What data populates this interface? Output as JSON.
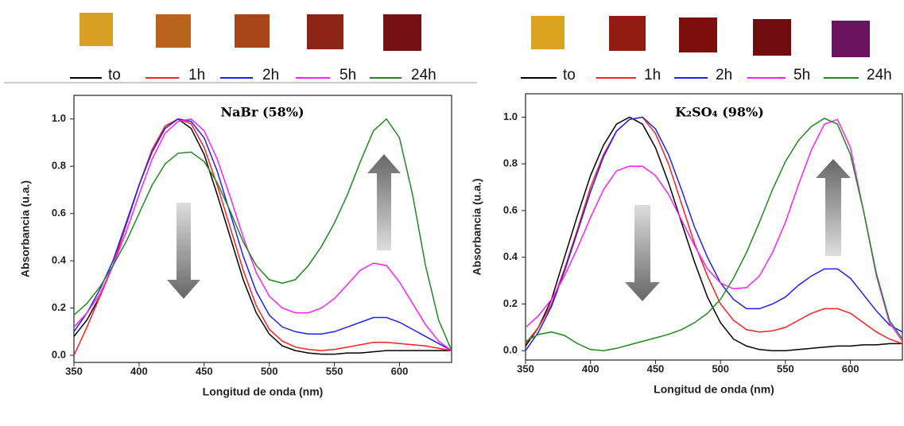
{
  "chart_data": [
    {
      "type": "line",
      "title": "NaBr (58%)",
      "x_label": "Longitud de onda (nm)",
      "y_label": "Absorbancia (u.a.)",
      "x": [
        350,
        360,
        370,
        380,
        390,
        400,
        410,
        420,
        430,
        440,
        450,
        460,
        470,
        480,
        490,
        500,
        510,
        520,
        530,
        540,
        550,
        560,
        570,
        580,
        590,
        600,
        610,
        620,
        630,
        640
      ],
      "xlim": [
        350,
        640
      ],
      "ylim": [
        -0.03,
        1.1
      ],
      "xticks": [
        350,
        400,
        450,
        500,
        550,
        600
      ],
      "yticks": [
        {
          "value": 0,
          "label": "0.0"
        },
        0.2,
        0.4,
        0.6,
        0.8,
        {
          "value": 1,
          "label": "1.0"
        }
      ],
      "series": [
        {
          "name": "to",
          "color": "#000000",
          "values": [
            0.08,
            0.15,
            0.25,
            0.38,
            0.55,
            0.72,
            0.87,
            0.97,
            1.0,
            0.96,
            0.85,
            0.68,
            0.5,
            0.32,
            0.18,
            0.09,
            0.04,
            0.02,
            0.01,
            0.005,
            0.005,
            0.01,
            0.01,
            0.015,
            0.02,
            0.02,
            0.02,
            0.02,
            0.02,
            0.02
          ]
        },
        {
          "name": "1h",
          "color": "#ff2020",
          "values": [
            0.0,
            0.12,
            0.25,
            0.38,
            0.55,
            0.72,
            0.87,
            0.97,
            1.0,
            0.98,
            0.88,
            0.72,
            0.54,
            0.36,
            0.21,
            0.11,
            0.06,
            0.035,
            0.025,
            0.02,
            0.025,
            0.035,
            0.045,
            0.055,
            0.055,
            0.05,
            0.045,
            0.04,
            0.03,
            0.02
          ]
        },
        {
          "name": "2h",
          "color": "#2020ff",
          "values": [
            0.1,
            0.18,
            0.28,
            0.4,
            0.56,
            0.72,
            0.86,
            0.96,
            1.0,
            0.99,
            0.92,
            0.78,
            0.6,
            0.42,
            0.27,
            0.17,
            0.12,
            0.1,
            0.09,
            0.09,
            0.1,
            0.12,
            0.14,
            0.16,
            0.16,
            0.14,
            0.11,
            0.08,
            0.05,
            0.02
          ]
        },
        {
          "name": "5h",
          "color": "#ff20ff",
          "values": [
            0.12,
            0.18,
            0.26,
            0.38,
            0.52,
            0.68,
            0.83,
            0.94,
            0.99,
            1.0,
            0.95,
            0.83,
            0.67,
            0.5,
            0.35,
            0.25,
            0.2,
            0.18,
            0.18,
            0.2,
            0.24,
            0.3,
            0.36,
            0.39,
            0.38,
            0.31,
            0.22,
            0.13,
            0.06,
            0.02
          ]
        },
        {
          "name": "24h",
          "color": "#208a20",
          "values": [
            0.17,
            0.22,
            0.29,
            0.38,
            0.48,
            0.6,
            0.72,
            0.81,
            0.855,
            0.86,
            0.82,
            0.73,
            0.61,
            0.48,
            0.38,
            0.32,
            0.305,
            0.32,
            0.38,
            0.46,
            0.56,
            0.68,
            0.82,
            0.95,
            1.0,
            0.92,
            0.68,
            0.38,
            0.15,
            0.02
          ]
        }
      ]
    },
    {
      "type": "line",
      "title": "K₂SO₄ (98%)",
      "x_label": "Longitud de onda (nm)",
      "y_label": "Absorbancia (u.a.)",
      "x": [
        350,
        360,
        370,
        380,
        390,
        400,
        410,
        420,
        430,
        440,
        450,
        460,
        470,
        480,
        490,
        500,
        510,
        520,
        530,
        540,
        550,
        560,
        570,
        580,
        590,
        600,
        610,
        620,
        630,
        640
      ],
      "xlim": [
        350,
        640
      ],
      "ylim": [
        -0.04,
        1.1
      ],
      "xticks": [
        350,
        400,
        450,
        500,
        550,
        600
      ],
      "yticks": [
        {
          "value": 0,
          "label": "0.0"
        },
        0.2,
        0.4,
        0.6,
        0.8,
        {
          "value": 1,
          "label": "1.0"
        }
      ],
      "series": [
        {
          "name": "to",
          "color": "#000000",
          "values": [
            0.02,
            0.1,
            0.22,
            0.4,
            0.58,
            0.75,
            0.88,
            0.97,
            1.0,
            0.97,
            0.87,
            0.72,
            0.55,
            0.38,
            0.23,
            0.12,
            0.05,
            0.02,
            0.005,
            0.0,
            0.0,
            0.005,
            0.01,
            0.015,
            0.02,
            0.02,
            0.025,
            0.025,
            0.03,
            0.03
          ]
        },
        {
          "name": "1h",
          "color": "#ff2020",
          "values": [
            0.03,
            0.1,
            0.2,
            0.35,
            0.52,
            0.7,
            0.84,
            0.94,
            0.99,
            1.0,
            0.93,
            0.8,
            0.63,
            0.46,
            0.32,
            0.2,
            0.13,
            0.09,
            0.08,
            0.085,
            0.1,
            0.13,
            0.16,
            0.18,
            0.18,
            0.16,
            0.12,
            0.08,
            0.05,
            0.03
          ]
        },
        {
          "name": "2h",
          "color": "#2020ff",
          "values": [
            0.0,
            0.08,
            0.19,
            0.34,
            0.51,
            0.68,
            0.83,
            0.94,
            0.99,
            1.0,
            0.95,
            0.84,
            0.69,
            0.53,
            0.4,
            0.29,
            0.22,
            0.18,
            0.18,
            0.2,
            0.23,
            0.28,
            0.32,
            0.35,
            0.35,
            0.31,
            0.24,
            0.17,
            0.11,
            0.08
          ]
        },
        {
          "name": "5h",
          "color": "#ff20ff",
          "values": [
            0.1,
            0.15,
            0.22,
            0.32,
            0.44,
            0.57,
            0.69,
            0.77,
            0.79,
            0.79,
            0.75,
            0.67,
            0.56,
            0.45,
            0.35,
            0.29,
            0.265,
            0.27,
            0.32,
            0.42,
            0.55,
            0.71,
            0.86,
            0.97,
            0.99,
            0.87,
            0.6,
            0.32,
            0.12,
            0.04
          ]
        },
        {
          "name": "24h",
          "color": "#208a20",
          "values": [
            0.04,
            0.07,
            0.08,
            0.065,
            0.03,
            0.005,
            0.0,
            0.01,
            0.025,
            0.04,
            0.055,
            0.07,
            0.09,
            0.12,
            0.16,
            0.22,
            0.31,
            0.42,
            0.55,
            0.69,
            0.81,
            0.9,
            0.96,
            0.995,
            0.97,
            0.84,
            0.6,
            0.33,
            0.13,
            0.05
          ]
        }
      ]
    }
  ]
}
